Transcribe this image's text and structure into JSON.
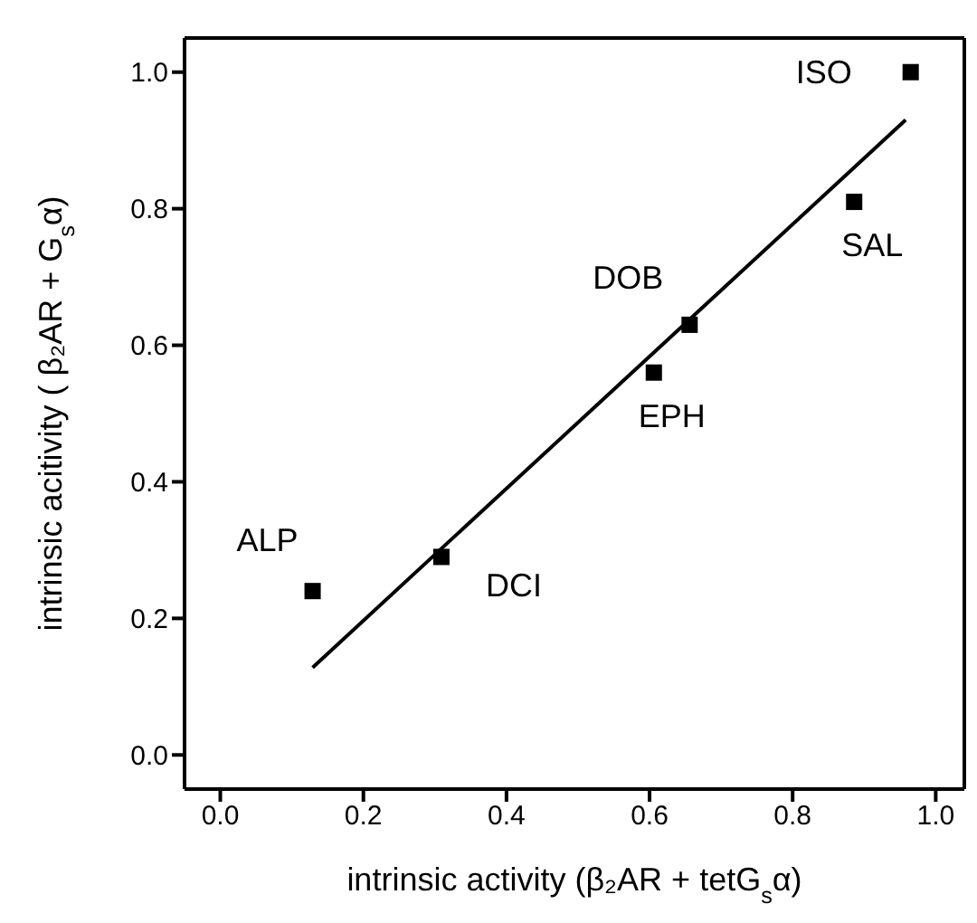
{
  "chart_data": {
    "type": "scatter",
    "xlabel": "intrinsic activity (β₂AR + tetG$_{s}$α)",
    "ylabel": "intrinsic acitivity ( β₂AR + G$_{s}$α)",
    "xlim": [
      -0.05,
      1.04
    ],
    "ylim": [
      -0.05,
      1.05
    ],
    "xticks": [
      {
        "value": 0,
        "label": "0.0"
      },
      0.2,
      0.4,
      0.6,
      0.8,
      {
        "value": 1,
        "label": "1.0"
      }
    ],
    "yticks": [
      {
        "value": 0,
        "label": "0.0"
      },
      0.2,
      0.4,
      0.6,
      0.8,
      {
        "value": 1,
        "label": "1.0"
      }
    ],
    "marker": "square",
    "series": [
      {
        "color": "#000000",
        "x": [
          0.965,
          0.886,
          0.656,
          0.606,
          0.309,
          0.129
        ],
        "values": [
          1.0,
          0.81,
          0.63,
          0.56,
          0.29,
          0.24
        ]
      },
      {
        "type": "line",
        "color": "#000000",
        "x": [
          0.129,
          0.958
        ],
        "values": [
          0.128,
          0.93
        ],
        "marker": "none",
        "line_style": "solid"
      }
    ],
    "annotations": [
      {
        "text": "ISO",
        "x": 0.965,
        "y": 1.0
      },
      {
        "text": "SAL",
        "x": 0.886,
        "y": 0.81
      },
      {
        "text": "DOB",
        "x": 0.656,
        "y": 0.63
      },
      {
        "text": "EPH",
        "x": 0.606,
        "y": 0.56
      },
      {
        "text": "DCI",
        "x": 0.309,
        "y": 0.29
      },
      {
        "text": "ALP",
        "x": 0.129,
        "y": 0.24
      }
    ]
  }
}
